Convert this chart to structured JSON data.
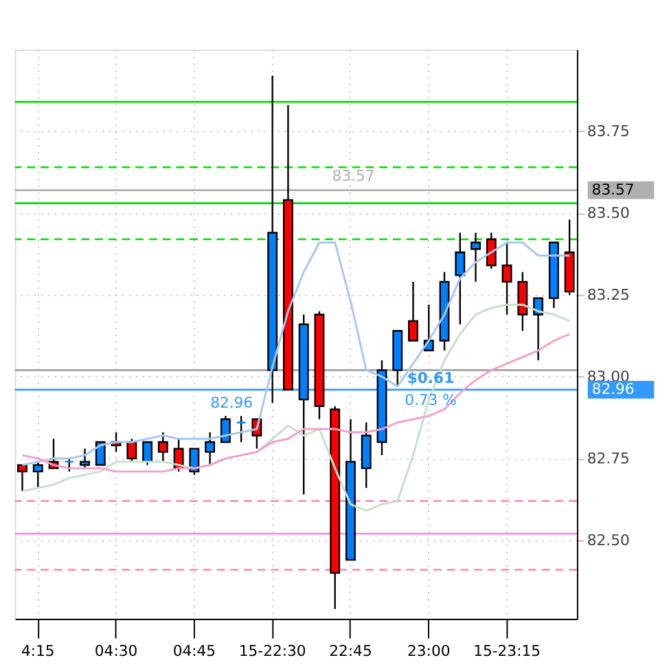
{
  "chart_data": {
    "type": "candlestick",
    "categories": [
      null,
      "4:15",
      null,
      null,
      null,
      null,
      "04:30",
      null,
      null,
      null,
      null,
      "04:45",
      null,
      null,
      null,
      null,
      "15-22:30",
      null,
      null,
      null,
      null,
      "22:45",
      null,
      null,
      null,
      null,
      "23:00",
      null,
      null,
      null,
      null,
      "15-23:15",
      null,
      null,
      null,
      null
    ],
    "ohlc": [
      [
        82.73,
        82.73,
        82.65,
        82.71
      ],
      [
        82.71,
        82.74,
        82.66,
        82.73
      ],
      [
        82.74,
        82.81,
        82.72,
        82.72
      ],
      [
        82.74,
        82.75,
        82.71,
        82.74
      ],
      [
        82.73,
        82.78,
        82.72,
        82.74
      ],
      [
        82.73,
        82.8,
        82.73,
        82.8
      ],
      [
        82.8,
        82.83,
        82.77,
        82.79
      ],
      [
        82.8,
        82.81,
        82.74,
        82.75
      ],
      [
        82.74,
        82.8,
        82.73,
        82.8
      ],
      [
        82.8,
        82.83,
        82.74,
        82.77
      ],
      [
        82.78,
        82.81,
        82.71,
        82.72
      ],
      [
        82.71,
        82.78,
        82.7,
        82.78
      ],
      [
        82.77,
        82.83,
        82.73,
        82.8
      ],
      [
        82.8,
        82.88,
        82.8,
        82.87
      ],
      [
        82.86,
        82.88,
        82.8,
        82.86
      ],
      [
        82.87,
        82.87,
        82.78,
        82.82
      ],
      [
        83.02,
        83.92,
        82.92,
        83.44
      ],
      [
        83.54,
        83.83,
        82.96,
        82.96
      ],
      [
        82.93,
        83.19,
        82.64,
        83.16
      ],
      [
        83.19,
        83.2,
        82.87,
        82.91
      ],
      [
        82.9,
        82.91,
        82.29,
        82.4
      ],
      [
        82.44,
        82.87,
        82.44,
        82.74
      ],
      [
        82.72,
        82.86,
        82.66,
        82.82
      ],
      [
        82.8,
        83.05,
        82.76,
        83.02
      ],
      [
        83.02,
        83.14,
        82.97,
        83.14
      ],
      [
        83.17,
        83.29,
        83.11,
        83.11
      ],
      [
        83.08,
        83.22,
        83.08,
        83.11
      ],
      [
        83.11,
        83.32,
        83.08,
        83.29
      ],
      [
        83.31,
        83.44,
        83.16,
        83.38
      ],
      [
        83.39,
        83.44,
        83.29,
        83.41
      ],
      [
        83.42,
        83.44,
        83.33,
        83.34
      ],
      [
        83.34,
        83.41,
        83.19,
        83.29
      ],
      [
        83.29,
        83.32,
        83.14,
        83.19
      ],
      [
        83.19,
        83.24,
        83.05,
        83.24
      ],
      [
        83.24,
        83.41,
        83.21,
        83.41
      ],
      [
        83.38,
        83.48,
        83.25,
        83.26
      ]
    ],
    "colors": [
      "#ff0000",
      "#0080ff",
      "#ff0000",
      "#0080ff",
      "#0080ff",
      "#0080ff",
      "#ff0000",
      "#ff0000",
      "#0080ff",
      "#ff0000",
      "#ff0000",
      "#0080ff",
      "#0080ff",
      "#0080ff",
      "#0080ff",
      "#ff0000",
      "#0080ff",
      "#ff0000",
      "#0080ff",
      "#ff0000",
      "#ff0000",
      "#0080ff",
      "#0080ff",
      "#0080ff",
      "#0080ff",
      "#ff0000",
      "#0080ff",
      "#0080ff",
      "#0080ff",
      "#0080ff",
      "#ff0000",
      "#ff0000",
      "#ff0000",
      "#0080ff",
      "#0080ff",
      "#ff0000"
    ],
    "series": [
      {
        "type": "line",
        "color": "#a8c8f0",
        "values": [
          82.73,
          82.74,
          82.75,
          82.75,
          82.76,
          82.79,
          82.8,
          82.8,
          82.81,
          82.82,
          82.81,
          82.81,
          82.81,
          82.82,
          82.83,
          82.84,
          83.03,
          83.2,
          83.32,
          83.41,
          83.41,
          83.23,
          83.02,
          83.0,
          82.97,
          83.04,
          83.11,
          83.19,
          83.3,
          83.35,
          83.38,
          83.41,
          83.41,
          83.37,
          83.37,
          83.37
        ]
      },
      {
        "type": "line",
        "color": "#c8e0c8",
        "values": [
          82.65,
          82.66,
          82.67,
          82.69,
          82.7,
          82.71,
          82.74,
          82.74,
          82.74,
          82.74,
          82.73,
          82.72,
          82.73,
          82.75,
          82.76,
          82.77,
          82.81,
          82.85,
          82.82,
          82.84,
          82.72,
          82.61,
          82.59,
          82.61,
          82.62,
          82.76,
          82.93,
          83.05,
          83.13,
          83.19,
          83.21,
          83.22,
          83.22,
          83.2,
          83.19,
          83.17
        ]
      },
      {
        "type": "line",
        "color": "#f0a0cc",
        "values": [
          82.76,
          82.75,
          82.73,
          82.72,
          82.72,
          82.72,
          82.71,
          82.71,
          82.71,
          82.71,
          82.72,
          82.72,
          82.73,
          82.75,
          82.76,
          82.77,
          82.8,
          82.81,
          82.84,
          82.84,
          82.84,
          82.83,
          82.83,
          82.84,
          82.86,
          82.87,
          82.88,
          82.9,
          82.95,
          82.99,
          83.02,
          83.04,
          83.06,
          83.08,
          83.11,
          83.13
        ]
      }
    ],
    "ylim": [
      82.26,
      84.0
    ],
    "yticks": [
      {
        "value": 82.5,
        "label": "82.50"
      },
      82.75,
      {
        "value": 83,
        "label": "83.00"
      },
      83.25,
      {
        "value": 83.5,
        "label": "83.50"
      },
      83.75
    ],
    "ref_lines": [
      {
        "axis": "y",
        "value": 83.84,
        "color": "#00dd00",
        "line_style": "solid"
      },
      {
        "axis": "y",
        "value": 83.64,
        "color": "#00dd00",
        "line_style": "dashed"
      },
      {
        "axis": "y",
        "value": 83.53,
        "color": "#00dd00",
        "line_style": "solid"
      },
      {
        "axis": "y",
        "value": 83.42,
        "color": "#00dd00",
        "line_style": "dashed"
      },
      {
        "axis": "y",
        "value": 83.02,
        "color": "#a0a0a0",
        "line_style": "solid"
      },
      {
        "axis": "y",
        "value": 82.62,
        "color": "#ff80c0",
        "line_style": "dashed"
      },
      {
        "axis": "y",
        "value": 82.52,
        "color": "#ff80ff",
        "line_style": "solid"
      },
      {
        "axis": "y",
        "value": 82.41,
        "color": "#ff80c0",
        "line_style": "dashed"
      },
      {
        "axis": "y",
        "value": 83.57,
        "label": "83.57",
        "color": "#b0b0b0",
        "line_style": "solid"
      },
      {
        "axis": "y",
        "value": 82.96,
        "label": "82.96",
        "color": "#3399ff",
        "line_style": "solid"
      }
    ],
    "annotations": [
      {
        "text": "83.57",
        "y": 83.57
      },
      {
        "text": "82.96",
        "y": 82.96
      },
      {
        "text": "$0.61",
        "y": 82.96
      },
      {
        "text": "0.73 %",
        "y": 82.96
      }
    ],
    "grid": true
  }
}
